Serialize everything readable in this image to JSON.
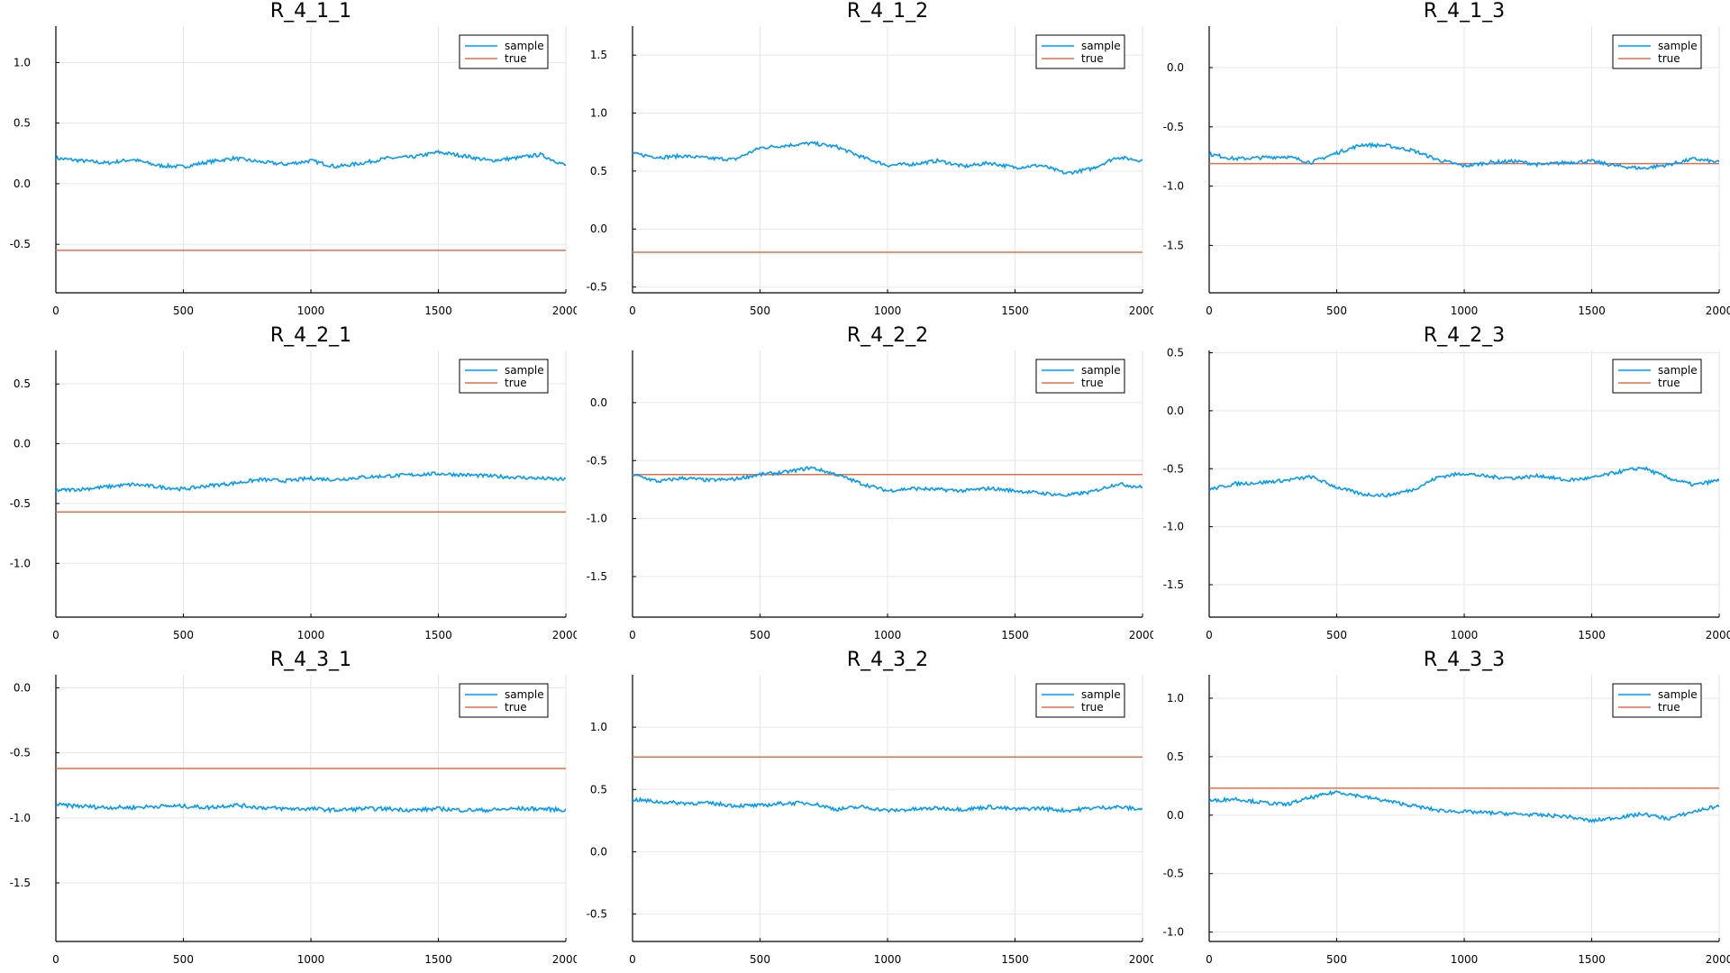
{
  "colors": {
    "sample": "#009af9",
    "true": "#e26f46",
    "grid": "#e6e6e6",
    "axis": "#000000"
  },
  "legend": {
    "sample_label": "sample",
    "true_label": "true",
    "placement": "top-right"
  },
  "chart_data": [
    {
      "type": "line",
      "title": "R_4_1_1",
      "xlim": [
        0,
        2000
      ],
      "ylim": [
        -0.9,
        1.3
      ],
      "xticks": [
        0,
        500,
        1000,
        1500,
        2000
      ],
      "yticks": [
        -0.5,
        0.0,
        0.5,
        1.0
      ],
      "yticklabels": [
        "-0.5",
        "0.0",
        "0.5",
        "1.0"
      ],
      "true_value": -0.55,
      "series": [
        {
          "name": "sample",
          "x": [
            0,
            100,
            200,
            300,
            400,
            500,
            600,
            700,
            800,
            900,
            1000,
            1100,
            1200,
            1300,
            1400,
            1500,
            1600,
            1700,
            1800,
            1900,
            2000
          ],
          "y": [
            0.21,
            0.19,
            0.17,
            0.2,
            0.15,
            0.14,
            0.18,
            0.21,
            0.18,
            0.16,
            0.19,
            0.14,
            0.17,
            0.21,
            0.22,
            0.26,
            0.23,
            0.19,
            0.21,
            0.24,
            0.15
          ]
        }
      ]
    },
    {
      "type": "line",
      "title": "R_4_1_2",
      "xlim": [
        0,
        2000
      ],
      "ylim": [
        -0.55,
        1.75
      ],
      "xticks": [
        0,
        500,
        1000,
        1500,
        2000
      ],
      "yticks": [
        -0.5,
        0.0,
        0.5,
        1.0,
        1.5
      ],
      "yticklabels": [
        "-0.5",
        "0.0",
        "0.5",
        "1.0",
        "1.5"
      ],
      "true_value": -0.2,
      "series": [
        {
          "name": "sample",
          "x": [
            0,
            100,
            200,
            300,
            400,
            500,
            600,
            700,
            800,
            900,
            1000,
            1100,
            1200,
            1300,
            1400,
            1500,
            1600,
            1700,
            1800,
            1900,
            2000
          ],
          "y": [
            0.65,
            0.62,
            0.63,
            0.61,
            0.6,
            0.7,
            0.72,
            0.74,
            0.71,
            0.62,
            0.55,
            0.56,
            0.59,
            0.54,
            0.57,
            0.53,
            0.55,
            0.48,
            0.52,
            0.62,
            0.59
          ]
        }
      ]
    },
    {
      "type": "line",
      "title": "R_4_1_3",
      "xlim": [
        0,
        2000
      ],
      "ylim": [
        -1.9,
        0.35
      ],
      "xticks": [
        0,
        500,
        1000,
        1500,
        2000
      ],
      "yticks": [
        -1.5,
        -1.0,
        -0.5,
        0.0
      ],
      "yticklabels": [
        "-1.5",
        "-1.0",
        "-0.5",
        "0.0"
      ],
      "true_value": -0.81,
      "series": [
        {
          "name": "sample",
          "x": [
            0,
            100,
            200,
            300,
            400,
            500,
            600,
            700,
            800,
            900,
            1000,
            1100,
            1200,
            1300,
            1400,
            1500,
            1600,
            1700,
            1800,
            1900,
            2000
          ],
          "y": [
            -0.73,
            -0.77,
            -0.76,
            -0.75,
            -0.8,
            -0.72,
            -0.65,
            -0.66,
            -0.7,
            -0.78,
            -0.83,
            -0.8,
            -0.79,
            -0.82,
            -0.8,
            -0.79,
            -0.83,
            -0.85,
            -0.82,
            -0.77,
            -0.8
          ]
        }
      ]
    },
    {
      "type": "line",
      "title": "R_4_2_1",
      "xlim": [
        0,
        2000
      ],
      "ylim": [
        -1.45,
        0.78
      ],
      "xticks": [
        0,
        500,
        1000,
        1500,
        2000
      ],
      "yticks": [
        -1.0,
        -0.5,
        0.0,
        0.5
      ],
      "yticklabels": [
        "-1.0",
        "-0.5",
        "0.0",
        "0.5"
      ],
      "true_value": -0.57,
      "series": [
        {
          "name": "sample",
          "x": [
            0,
            100,
            200,
            300,
            400,
            500,
            600,
            700,
            800,
            900,
            1000,
            1100,
            1200,
            1300,
            1400,
            1500,
            1600,
            1700,
            1800,
            1900,
            2000
          ],
          "y": [
            -0.39,
            -0.38,
            -0.36,
            -0.34,
            -0.36,
            -0.38,
            -0.35,
            -0.33,
            -0.3,
            -0.31,
            -0.29,
            -0.3,
            -0.28,
            -0.27,
            -0.26,
            -0.25,
            -0.26,
            -0.27,
            -0.28,
            -0.29,
            -0.3
          ]
        }
      ]
    },
    {
      "type": "line",
      "title": "R_4_2_2",
      "xlim": [
        0,
        2000
      ],
      "ylim": [
        -1.85,
        0.45
      ],
      "xticks": [
        0,
        500,
        1000,
        1500,
        2000
      ],
      "yticks": [
        -1.5,
        -1.0,
        -0.5,
        0.0
      ],
      "yticklabels": [
        "-1.5",
        "-1.0",
        "-0.5",
        "0.0"
      ],
      "true_value": -0.62,
      "series": [
        {
          "name": "sample",
          "x": [
            0,
            100,
            200,
            300,
            400,
            500,
            600,
            700,
            800,
            900,
            1000,
            1100,
            1200,
            1300,
            1400,
            1500,
            1600,
            1700,
            1800,
            1900,
            2000
          ],
          "y": [
            -0.62,
            -0.68,
            -0.65,
            -0.67,
            -0.66,
            -0.62,
            -0.6,
            -0.56,
            -0.62,
            -0.7,
            -0.76,
            -0.74,
            -0.75,
            -0.76,
            -0.74,
            -0.76,
            -0.78,
            -0.8,
            -0.77,
            -0.7,
            -0.73
          ]
        }
      ]
    },
    {
      "type": "line",
      "title": "R_4_2_3",
      "xlim": [
        0,
        2000
      ],
      "ylim": [
        -1.78,
        0.52
      ],
      "xticks": [
        0,
        500,
        1000,
        1500,
        2000
      ],
      "yticks": [
        -1.5,
        -1.0,
        -0.5,
        0.0,
        0.5
      ],
      "yticklabels": [
        "-1.5",
        "-1.0",
        "-0.5",
        "0.0",
        "0.5"
      ],
      "true_value": null,
      "series": [
        {
          "name": "sample",
          "x": [
            0,
            100,
            200,
            300,
            400,
            500,
            600,
            700,
            800,
            900,
            1000,
            1100,
            1200,
            1300,
            1400,
            1500,
            1600,
            1700,
            1800,
            1900,
            2000
          ],
          "y": [
            -0.68,
            -0.63,
            -0.62,
            -0.6,
            -0.57,
            -0.66,
            -0.72,
            -0.73,
            -0.68,
            -0.57,
            -0.54,
            -0.57,
            -0.58,
            -0.56,
            -0.6,
            -0.58,
            -0.53,
            -0.49,
            -0.58,
            -0.64,
            -0.6
          ]
        }
      ]
    },
    {
      "type": "line",
      "title": "R_4_3_1",
      "xlim": [
        0,
        2000
      ],
      "ylim": [
        -1.95,
        0.1
      ],
      "xticks": [
        0,
        500,
        1000,
        1500,
        2000
      ],
      "yticks": [
        -1.5,
        -1.0,
        -0.5,
        0.0
      ],
      "yticklabels": [
        "-1.5",
        "-1.0",
        "-0.5",
        "0.0"
      ],
      "true_value": -0.62,
      "series": [
        {
          "name": "sample",
          "x": [
            0,
            100,
            200,
            300,
            400,
            500,
            600,
            700,
            800,
            900,
            1000,
            1100,
            1200,
            1300,
            1400,
            1500,
            1600,
            1700,
            1800,
            1900,
            2000
          ],
          "y": [
            -0.9,
            -0.91,
            -0.92,
            -0.92,
            -0.91,
            -0.91,
            -0.92,
            -0.9,
            -0.92,
            -0.93,
            -0.93,
            -0.94,
            -0.93,
            -0.93,
            -0.94,
            -0.93,
            -0.94,
            -0.94,
            -0.93,
            -0.93,
            -0.94
          ]
        }
      ]
    },
    {
      "type": "line",
      "title": "R_4_3_2",
      "xlim": [
        0,
        2000
      ],
      "ylim": [
        -0.72,
        1.42
      ],
      "xticks": [
        0,
        500,
        1000,
        1500,
        2000
      ],
      "yticks": [
        -0.5,
        0.0,
        0.5,
        1.0
      ],
      "yticklabels": [
        "-0.5",
        "0.0",
        "0.5",
        "1.0"
      ],
      "true_value": 0.76,
      "series": [
        {
          "name": "sample",
          "x": [
            0,
            100,
            200,
            300,
            400,
            500,
            600,
            700,
            800,
            900,
            1000,
            1100,
            1200,
            1300,
            1400,
            1500,
            1600,
            1700,
            1800,
            1900,
            2000
          ],
          "y": [
            0.42,
            0.4,
            0.39,
            0.39,
            0.37,
            0.37,
            0.39,
            0.39,
            0.34,
            0.36,
            0.33,
            0.34,
            0.35,
            0.34,
            0.36,
            0.34,
            0.35,
            0.33,
            0.35,
            0.36,
            0.34
          ]
        }
      ]
    },
    {
      "type": "line",
      "title": "R_4_3_3",
      "xlim": [
        0,
        2000
      ],
      "ylim": [
        -1.08,
        1.2
      ],
      "xticks": [
        0,
        500,
        1000,
        1500,
        2000
      ],
      "yticks": [
        -1.0,
        -0.5,
        0.0,
        0.5,
        1.0
      ],
      "yticklabels": [
        "-1.0",
        "-0.5",
        "0.0",
        "0.5",
        "1.0"
      ],
      "true_value": 0.23,
      "series": [
        {
          "name": "sample",
          "x": [
            0,
            100,
            200,
            300,
            400,
            500,
            600,
            700,
            800,
            900,
            1000,
            1100,
            1200,
            1300,
            1400,
            1500,
            1600,
            1700,
            1800,
            1900,
            2000
          ],
          "y": [
            0.12,
            0.14,
            0.11,
            0.09,
            0.15,
            0.2,
            0.16,
            0.12,
            0.08,
            0.04,
            0.03,
            0.02,
            0.01,
            0.0,
            -0.01,
            -0.05,
            -0.02,
            0.01,
            -0.03,
            0.03,
            0.08
          ]
        }
      ]
    }
  ]
}
